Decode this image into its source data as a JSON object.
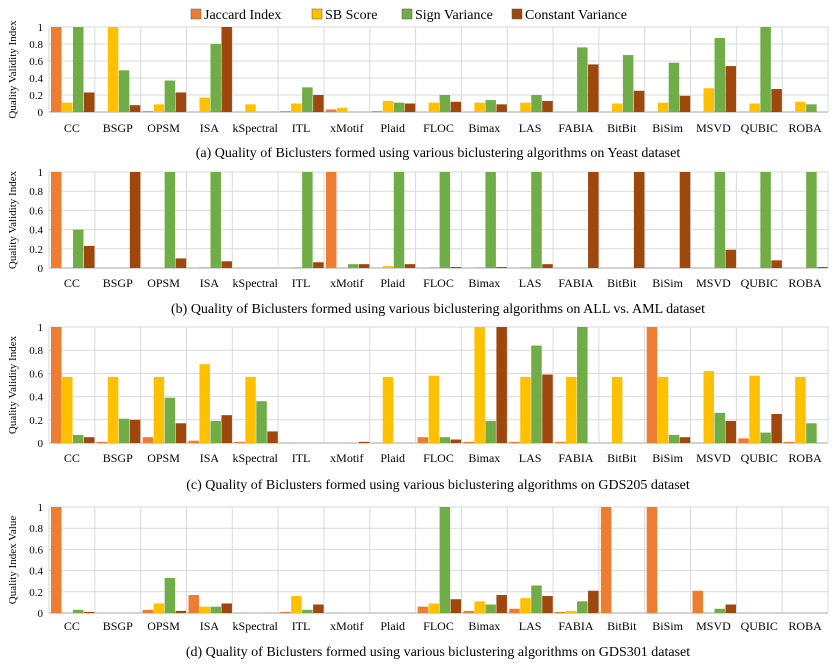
{
  "legend": [
    {
      "label": "Jaccard Index",
      "color": "#ed7d31"
    },
    {
      "label": "SB Score",
      "color": "#ffc000"
    },
    {
      "label": "Sign Variance",
      "color": "#70ad47"
    },
    {
      "label": "Constant Variance",
      "color": "#9e480e"
    }
  ],
  "colors": {
    "jaccard": "#ed7d31",
    "sb": "#ffc000",
    "sign": "#70ad47",
    "constant": "#9e480e",
    "grid": "#d9d9d9",
    "axis": "#a6a6a6"
  },
  "chart_data": [
    {
      "type": "bar",
      "title": "(a) Quality of Biclusters formed using various biclustering algorithms on Yeast dataset",
      "xlabel": "",
      "ylabel": "Quality Validity Index",
      "ylim": [
        0,
        1
      ],
      "yticks": [
        "0",
        "0.2",
        "0.4",
        "0.6",
        "0.8",
        "1"
      ],
      "categories": [
        "CC",
        "BSGP",
        "OPSM",
        "ISA",
        "kSpectral",
        "ITL",
        "xMotif",
        "Plaid",
        "FLOC",
        "Bimax",
        "LAS",
        "FABIA",
        "BitBit",
        "BiSim",
        "MSVD",
        "QUBIC",
        "ROBA"
      ],
      "series": [
        {
          "name": "Jaccard Index",
          "values": [
            1.0,
            0.0,
            0.01,
            0.0,
            0.0,
            0.01,
            0.03,
            0.01,
            0.0,
            0.0,
            0.0,
            0.0,
            0.0,
            0.0,
            0.0,
            0.0,
            0.0
          ]
        },
        {
          "name": "SB Score",
          "values": [
            0.11,
            1.0,
            0.09,
            0.17,
            0.09,
            0.1,
            0.05,
            0.13,
            0.11,
            0.11,
            0.11,
            0.0,
            0.1,
            0.11,
            0.28,
            0.1,
            0.12
          ]
        },
        {
          "name": "Sign Variance",
          "values": [
            1.0,
            0.49,
            0.37,
            0.8,
            0.0,
            0.29,
            0.0,
            0.11,
            0.2,
            0.14,
            0.2,
            0.76,
            0.67,
            0.58,
            0.87,
            1.0,
            0.09
          ]
        },
        {
          "name": "Constant Variance",
          "values": [
            0.23,
            0.08,
            0.23,
            1.0,
            0.0,
            0.2,
            0.0,
            0.1,
            0.12,
            0.09,
            0.13,
            0.56,
            0.25,
            0.19,
            0.54,
            0.27,
            0.0
          ]
        }
      ]
    },
    {
      "type": "bar",
      "title": "(b) Quality of Biclusters formed using various biclustering algorithms on ALL vs. AML dataset",
      "xlabel": "",
      "ylabel": "Quality Validity Index",
      "ylim": [
        0,
        1
      ],
      "yticks": [
        "0",
        "0.2",
        "0.4",
        "0.6",
        "0.8",
        "1"
      ],
      "categories": [
        "CC",
        "BSGP",
        "OPSM",
        "ISA",
        "kSpectral",
        "ITL",
        "xMotif",
        "Plaid",
        "FLOC",
        "Bimax",
        "LAS",
        "FABIA",
        "BitBit",
        "BiSim",
        "MSVD",
        "QUBIC",
        "ROBA"
      ],
      "series": [
        {
          "name": "Jaccard Index",
          "values": [
            1.0,
            0.0,
            0.0,
            0.0,
            0.0,
            0.0,
            1.0,
            0.0,
            0.0,
            0.0,
            0.0,
            0.0,
            0.0,
            0.0,
            0.0,
            0.0,
            0.0
          ]
        },
        {
          "name": "SB Score",
          "values": [
            0.0,
            0.0,
            0.0,
            0.01,
            0.0,
            0.01,
            0.0,
            0.02,
            0.01,
            0.01,
            0.01,
            0.0,
            0.0,
            0.0,
            0.0,
            0.0,
            0.0
          ]
        },
        {
          "name": "Sign Variance",
          "values": [
            0.4,
            0.0,
            1.0,
            1.0,
            0.0,
            1.0,
            0.04,
            1.0,
            1.0,
            1.0,
            1.0,
            0.0,
            0.0,
            0.0,
            1.0,
            1.0,
            1.0
          ]
        },
        {
          "name": "Constant Variance",
          "values": [
            0.23,
            1.0,
            0.1,
            0.07,
            0.0,
            0.06,
            0.04,
            0.04,
            0.01,
            0.01,
            0.04,
            1.0,
            1.0,
            1.0,
            0.19,
            0.08,
            0.01
          ]
        }
      ]
    },
    {
      "type": "bar",
      "title": "(c) Quality of Biclusters formed using various biclustering algorithms on GDS205 dataset",
      "xlabel": "",
      "ylabel": "Quality Validity Index",
      "ylim": [
        0,
        1
      ],
      "yticks": [
        "0",
        "0.2",
        "0.4",
        "0.6",
        "0.8",
        "1"
      ],
      "categories": [
        "CC",
        "BSGP",
        "OPSM",
        "ISA",
        "kSpectral",
        "ITL",
        "xMotif",
        "Plaid",
        "FLOC",
        "Bimax",
        "LAS",
        "FABIA",
        "BitBit",
        "BiSim",
        "MSVD",
        "QUBIC",
        "ROBA"
      ],
      "series": [
        {
          "name": "Jaccard Index",
          "values": [
            1.0,
            0.01,
            0.05,
            0.02,
            0.01,
            0.0,
            0.0,
            0.0,
            0.05,
            0.01,
            0.01,
            0.01,
            0.0,
            1.0,
            0.0,
            0.04,
            0.01
          ]
        },
        {
          "name": "SB Score",
          "values": [
            0.57,
            0.57,
            0.57,
            0.68,
            0.57,
            0.0,
            0.0,
            0.57,
            0.58,
            1.0,
            0.57,
            0.57,
            0.57,
            0.57,
            0.62,
            0.58,
            0.57
          ]
        },
        {
          "name": "Sign Variance",
          "values": [
            0.07,
            0.21,
            0.39,
            0.19,
            0.36,
            0.0,
            0.0,
            0.0,
            0.05,
            0.19,
            0.84,
            1.0,
            0.0,
            0.07,
            0.26,
            0.09,
            0.17
          ]
        },
        {
          "name": "Constant Variance",
          "values": [
            0.05,
            0.2,
            0.17,
            0.24,
            0.1,
            0.0,
            0.01,
            0.0,
            0.03,
            1.0,
            0.59,
            0.0,
            0.0,
            0.05,
            0.19,
            0.25,
            0.0
          ]
        }
      ]
    },
    {
      "type": "bar",
      "title": "(d) Quality of Biclusters formed using various biclustering algorithms on GDS301 dataset",
      "xlabel": "",
      "ylabel": "Quality Index Value",
      "ylim": [
        0,
        1
      ],
      "yticks": [
        "0",
        "0.2",
        "0.4",
        "0.6",
        "0.8",
        "1"
      ],
      "categories": [
        "CC",
        "BSGP",
        "OPSM",
        "ISA",
        "kSpectral",
        "ITL",
        "xMotif",
        "Plaid",
        "FLOC",
        "Bimax",
        "LAS",
        "FABIA",
        "BitBit",
        "BiSim",
        "MSVD",
        "QUBIC",
        "ROBA"
      ],
      "series": [
        {
          "name": "Jaccard Index",
          "values": [
            1.0,
            0.0,
            0.03,
            0.17,
            0.0,
            0.01,
            0.0,
            0.0,
            0.06,
            0.02,
            0.04,
            0.01,
            1.0,
            1.0,
            0.21,
            0.0,
            0.0
          ]
        },
        {
          "name": "SB Score",
          "values": [
            0.0,
            0.0,
            0.09,
            0.06,
            0.0,
            0.16,
            0.0,
            0.0,
            0.09,
            0.11,
            0.14,
            0.02,
            0.0,
            0.0,
            0.0,
            0.0,
            0.0
          ]
        },
        {
          "name": "Sign Variance",
          "values": [
            0.03,
            0.0,
            0.33,
            0.06,
            0.0,
            0.03,
            0.0,
            0.0,
            1.0,
            0.08,
            0.26,
            0.11,
            0.0,
            0.0,
            0.04,
            0.0,
            0.0
          ]
        },
        {
          "name": "Constant Variance",
          "values": [
            0.01,
            0.0,
            0.02,
            0.09,
            0.0,
            0.08,
            0.0,
            0.0,
            0.13,
            0.17,
            0.16,
            0.21,
            0.0,
            0.0,
            0.08,
            0.0,
            0.0
          ]
        }
      ]
    }
  ]
}
